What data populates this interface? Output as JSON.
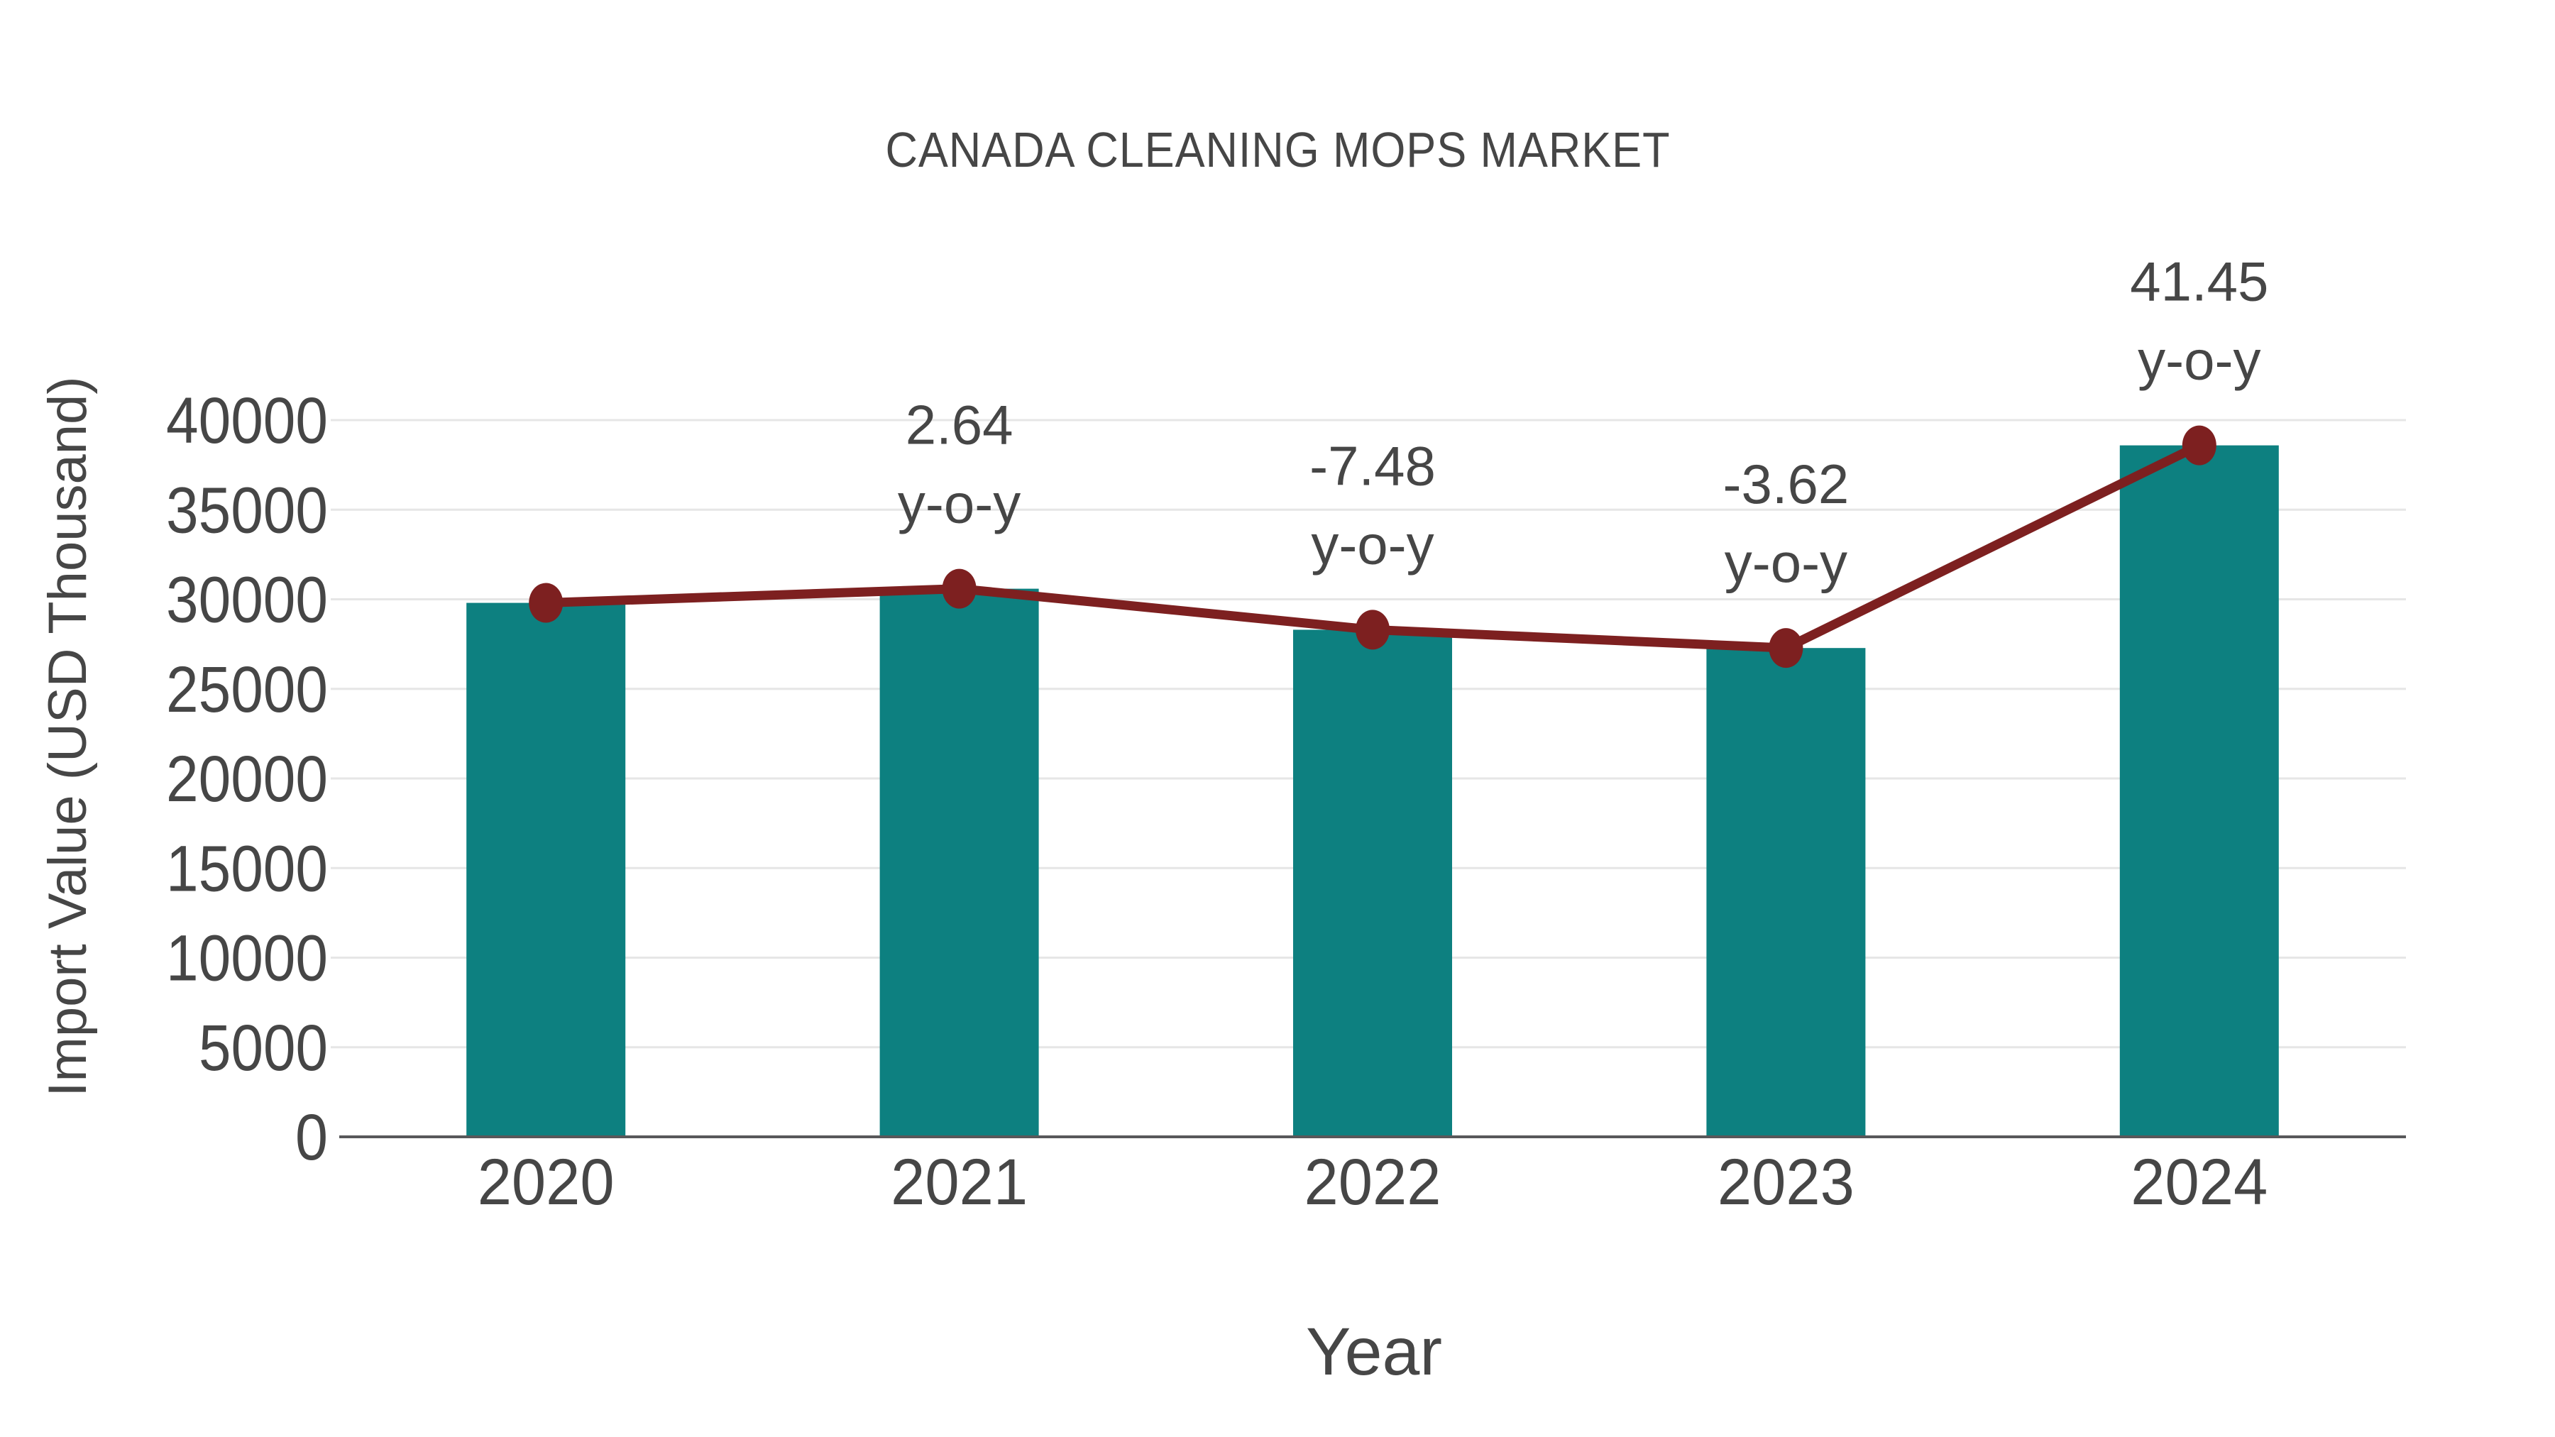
{
  "chart_data": {
    "type": "bar",
    "overlay": "line",
    "title": "CANADA CLEANING MOPS MARKET",
    "xlabel": "Year",
    "ylabel": "Import Value (USD Thousand)",
    "categories": [
      "2020",
      "2021",
      "2022",
      "2023",
      "2024"
    ],
    "values": [
      29800,
      30590,
      28300,
      27280,
      38590
    ],
    "yoy_percent": [
      null,
      2.64,
      -7.48,
      -3.62,
      41.45
    ],
    "annotations": [
      {
        "index": 1,
        "line1": "2.64",
        "line2": "y-o-y"
      },
      {
        "index": 2,
        "line1": "-7.48",
        "line2": "y-o-y"
      },
      {
        "index": 3,
        "line1": "-3.62",
        "line2": "y-o-y"
      },
      {
        "index": 4,
        "line1": "41.45",
        "line2": "y-o-y"
      }
    ],
    "ylim": [
      0,
      40000
    ],
    "yticks": [
      0,
      5000,
      10000,
      15000,
      20000,
      25000,
      30000,
      35000,
      40000
    ],
    "grid": true,
    "legend": "none",
    "colors": {
      "bar": "#0d8080",
      "line": "#7d2020",
      "marker": "#7d2020",
      "text": "#464646",
      "grid": "#e6e6e6",
      "axis": "#58585a",
      "background": "#ffffff"
    }
  }
}
